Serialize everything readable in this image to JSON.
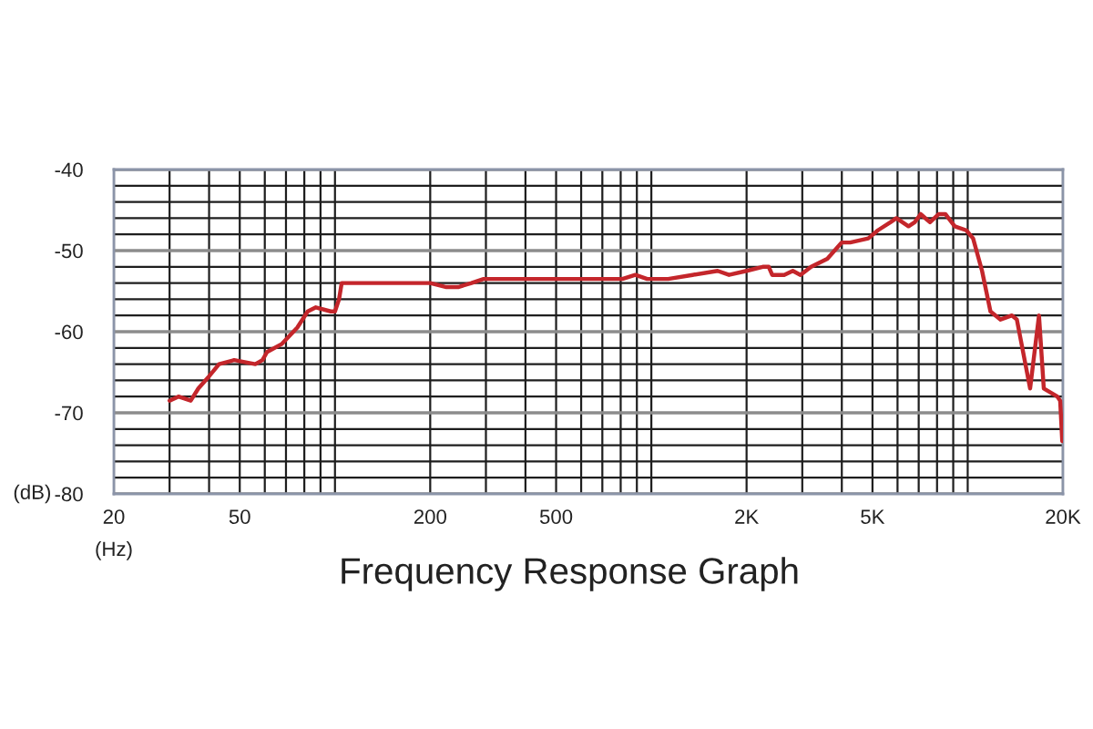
{
  "chart_data": {
    "type": "line",
    "title": "Frequency Response Graph",
    "xlabel": "(Hz)",
    "ylabel": "(dB)",
    "log": "x",
    "grid": true,
    "xlim": [
      20,
      20000
    ],
    "ylim": [
      -80,
      -40
    ],
    "xticks": [
      20,
      {
        "value": 30,
        "label": null
      },
      {
        "value": 40,
        "label": null
      },
      50,
      {
        "value": 60,
        "label": null
      },
      {
        "value": 70,
        "label": null
      },
      {
        "value": 80,
        "label": null
      },
      {
        "value": 90,
        "label": null
      },
      {
        "value": 100,
        "label": null
      },
      200,
      {
        "value": 300,
        "label": null
      },
      {
        "value": 400,
        "label": null
      },
      500,
      {
        "value": 600,
        "label": null
      },
      {
        "value": 700,
        "label": null
      },
      {
        "value": 800,
        "label": null
      },
      {
        "value": 900,
        "label": null
      },
      {
        "value": 1000,
        "label": null
      },
      {
        "value": 2000,
        "label": "2K"
      },
      {
        "value": 3000,
        "label": null
      },
      {
        "value": 4000,
        "label": null
      },
      {
        "value": 5000,
        "label": "5K"
      },
      {
        "value": 6000,
        "label": null
      },
      {
        "value": 7000,
        "label": null
      },
      {
        "value": 8000,
        "label": null
      },
      {
        "value": 9000,
        "label": null
      },
      {
        "value": 10000,
        "label": null
      },
      {
        "value": 20000,
        "label": "20K"
      }
    ],
    "yticks": [
      -80,
      {
        "value": -78,
        "label": null
      },
      {
        "value": -76,
        "label": null
      },
      {
        "value": -74,
        "label": null
      },
      {
        "value": -72,
        "label": null
      },
      -70,
      {
        "value": -68,
        "label": null
      },
      {
        "value": -66,
        "label": null
      },
      {
        "value": -64,
        "label": null
      },
      {
        "value": -62,
        "label": null
      },
      -60,
      {
        "value": -58,
        "label": null
      },
      {
        "value": -56,
        "label": null
      },
      {
        "value": -54,
        "label": null
      },
      {
        "value": -52,
        "label": null
      },
      -50,
      {
        "value": -48,
        "label": null
      },
      {
        "value": -46,
        "label": null
      },
      {
        "value": -44,
        "label": null
      },
      {
        "value": -42,
        "label": null
      },
      -40
    ],
    "series": [
      {
        "color": "#c4262b",
        "x": [
          30,
          32,
          35,
          37,
          40,
          43,
          48,
          56,
          59,
          61,
          68,
          76,
          82,
          87,
          97,
          100,
          103,
          105,
          110,
          125,
          155,
          200,
          225,
          245,
          270,
          295,
          380,
          580,
          810,
          890,
          970,
          1130,
          1350,
          1620,
          1760,
          2000,
          2250,
          2350,
          2410,
          2630,
          2800,
          2960,
          3200,
          3600,
          4000,
          4250,
          4850,
          5200,
          5700,
          5950,
          6500,
          6800,
          7100,
          7600,
          8100,
          8500,
          9100,
          9900,
          10400,
          11100,
          11800,
          12700,
          13800,
          14300,
          15750,
          16800,
          17400,
          19200,
          19600,
          19900
        ],
        "values": [
          -68.5,
          -68,
          -68.5,
          -67,
          -65.5,
          -64,
          -63.5,
          -64,
          -63.5,
          -62.5,
          -61.5,
          -59.5,
          -57.5,
          -57,
          -57.5,
          -57.5,
          -56,
          -54,
          -54,
          -54,
          -54,
          -54,
          -54.5,
          -54.5,
          -54,
          -53.5,
          -53.5,
          -53.5,
          -53.5,
          -53,
          -53.5,
          -53.5,
          -53,
          -52.5,
          -53,
          -52.5,
          -52,
          -52,
          -53,
          -53,
          -52.5,
          -53,
          -52,
          -51,
          -49,
          -49,
          -48.5,
          -47.5,
          -46.5,
          -46,
          -47,
          -46.5,
          -45.5,
          -46.5,
          -45.5,
          -45.5,
          -47,
          -47.5,
          -48.5,
          -52.5,
          -57.5,
          -58.5,
          -58,
          -58.5,
          -67,
          -58,
          -67,
          -68,
          -68.5,
          -73.5
        ]
      }
    ]
  }
}
